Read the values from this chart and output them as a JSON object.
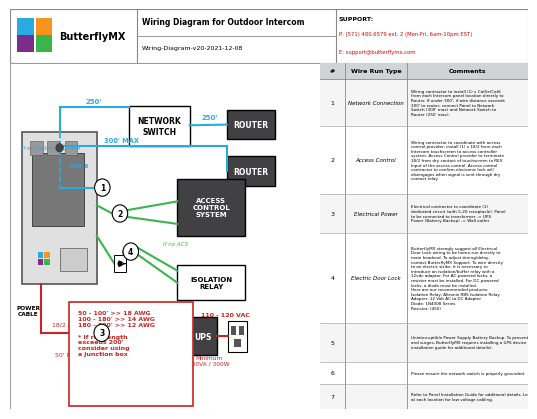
{
  "title": "Wiring Diagram for Outdoor Intercom",
  "subtitle": "Wiring-Diagram-v20-2021-12-08",
  "support_phone": "P: (571) 480.6579 ext. 2 (Mon-Fri, 6am-10pm EST)",
  "support_email": "E: support@butterflymx.com",
  "wire_runs": [
    {
      "num": 1,
      "type": "Network Connection",
      "comments": "Wiring contractor to install (1) x Cat5e/Cat6\nfrom each Intercom panel location directly to\nRouter. If under 300', if wire distance exceeds\n300' to router, connect Panel to Network\nSwitch (300' max) and Network Switch to\nRouter (250' max)."
    },
    {
      "num": 2,
      "type": "Access Control",
      "comments": "Wiring contractor to coordinate with access\ncontrol provider, install (1) x 18/2 from each\nIntercom touchscreen to access controller\nsystem. Access Control provider to terminate\n18/2 from dry contact of touchscreen to REX\nInput of the access control. Access control\ncontractor to confirm electronic lock will\ndisengages when signal is sent through dry\ncontact relay."
    },
    {
      "num": 3,
      "type": "Electrical Power",
      "comments": "Electrical contractor to coordinate (1)\ndedicated circuit (with 5-20 receptacle). Panel\nto be connected to transformer -> UPS\nPower (Battery Backup) -> Wall outlet"
    },
    {
      "num": 4,
      "type": "Electric Door Lock",
      "comments": "ButterflyMX strongly suggest all Electrical\nDoor Lock wiring to be home-run directly to\nmain headend. To adjust timing/delay,\ncontact ButterflyMX Support. To wire directly\nto an electric strike, it is necessary to\nintroduce an isolation/buffer relay with a\n12vdc adapter. For AC-powered locks, a\nresistor must be installed. For DC-powered\nlocks, a diode must be installed.\nHere are our recommended products:\nIsolation Relay: Altronix RBS Isolation Relay\nAdapter: 12 Volt AC to DC Adapter\nDiode: 1N4008 Series\nResistor: (450)"
    },
    {
      "num": 5,
      "type": "",
      "comments": "Uninterruptible Power Supply Battery Backup. To prevent voltage drops\nand surges, ButterflyMX requires installing a UPS device (see panel\ninstallation guide for additional details)."
    },
    {
      "num": 6,
      "type": "",
      "comments": "Please ensure the network switch is properly grounded."
    },
    {
      "num": 7,
      "type": "",
      "comments": "Refer to Panel Installation Guide for additional details. Leave 6' service loop\nat each location for low voltage cabling."
    }
  ],
  "colors": {
    "cyan": "#29abe2",
    "green": "#39b54a",
    "red": "#cc2222",
    "orange": "#f7941d",
    "purple": "#7b2d8b",
    "blue_logo": "#29abe2",
    "green_logo": "#39b54a",
    "dark_box": "#414042",
    "panel_gray": "#bcbec0",
    "screen_gray": "#808285",
    "table_header_gray": "#d1d3d4"
  }
}
